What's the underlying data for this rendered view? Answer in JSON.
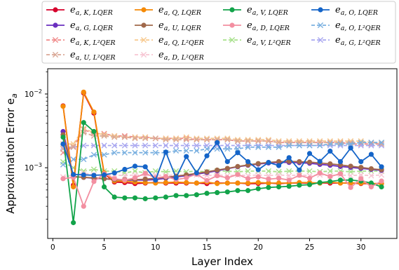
{
  "chart_data": {
    "type": "line",
    "xlabel": "Layer Index",
    "ylabel": "Approximation Error e_a",
    "x_scale": "linear",
    "y_scale": "log",
    "xlim": [
      -0.5,
      33.5
    ],
    "ylim": [
      0.00011,
      0.022
    ],
    "x_ticks": [
      0,
      5,
      10,
      15,
      20,
      25,
      30
    ],
    "y_ticks": [
      {
        "value": 0.01,
        "label": "10^-2"
      },
      {
        "value": 0.001,
        "label": "10^-3"
      }
    ],
    "grid": false,
    "legend_position": "top",
    "legend_columns": 4,
    "x": [
      1,
      2,
      3,
      4,
      5,
      6,
      7,
      8,
      9,
      10,
      11,
      12,
      13,
      14,
      15,
      16,
      17,
      18,
      19,
      20,
      21,
      22,
      23,
      24,
      25,
      26,
      27,
      28,
      29,
      30,
      31,
      32
    ],
    "series": [
      {
        "name": "e_{a,K,LQER}",
        "color": "#d6002c",
        "marker": "o",
        "style": "solid",
        "values": [
          0.0069,
          0.00058,
          0.0103,
          0.0055,
          0.00083,
          0.00064,
          0.00063,
          0.00061,
          0.00062,
          0.00063,
          0.00062,
          0.00062,
          0.00062,
          0.00062,
          0.00061,
          0.00062,
          0.00062,
          0.00062,
          0.00061,
          0.00061,
          0.00062,
          0.00061,
          0.00062,
          0.00062,
          0.00062,
          0.00062,
          0.00062,
          0.00062,
          0.00062,
          0.00061,
          0.00061,
          0.00061
        ]
      },
      {
        "name": "e_{a,G,LQER}",
        "color": "#6a2fbf",
        "marker": "o",
        "style": "solid",
        "values": [
          0.0031,
          0.00076,
          0.00074,
          0.00072,
          0.00071,
          0.00069,
          0.00068,
          0.00068,
          0.00068,
          0.00069,
          0.00072,
          0.00075,
          0.00078,
          0.00082,
          0.00086,
          0.00091,
          0.00097,
          0.00103,
          0.00108,
          0.00112,
          0.00116,
          0.00118,
          0.00118,
          0.00117,
          0.00115,
          0.00111,
          0.00108,
          0.00104,
          0.00101,
          0.00098,
          0.00095,
          0.00092
        ]
      },
      {
        "name": "e_{a,K,L²QER}",
        "color": "#f08a8a",
        "marker": "x",
        "style": "dashed",
        "values": [
          0.0016,
          0.00195,
          0.0033,
          0.0029,
          0.0029,
          0.0027,
          0.0027,
          0.0026,
          0.0026,
          0.0025,
          0.0025,
          0.0025,
          0.0025,
          0.0024,
          0.0024,
          0.0024,
          0.0024,
          0.0023,
          0.0023,
          0.0023,
          0.0023,
          0.0022,
          0.0022,
          0.0022,
          0.0022,
          0.0022,
          0.0022,
          0.0022,
          0.0021,
          0.0021,
          0.0021,
          0.0021
        ]
      },
      {
        "name": "e_{a,G,L²QER}",
        "color": "#a8a6f0",
        "marker": "x",
        "style": "dashed",
        "values": [
          0.0019,
          0.0019,
          0.002,
          0.002,
          0.002,
          0.002,
          0.002,
          0.002,
          0.002,
          0.002,
          0.002,
          0.002,
          0.002,
          0.002,
          0.002,
          0.002,
          0.002,
          0.002,
          0.002,
          0.002,
          0.002,
          0.002,
          0.002,
          0.002,
          0.002,
          0.002,
          0.002,
          0.002,
          0.002,
          0.002,
          0.002,
          0.002
        ]
      },
      {
        "name": "e_{a,Q,LQER}",
        "color": "#f58a07",
        "marker": "o",
        "style": "solid",
        "values": [
          0.0068,
          0.00055,
          0.0106,
          0.0057,
          0.00085,
          0.00066,
          0.00066,
          0.00064,
          0.00063,
          0.00062,
          0.00063,
          0.00064,
          0.00063,
          0.00062,
          0.00064,
          0.00061,
          0.00062,
          0.00062,
          0.00062,
          0.00063,
          0.00062,
          0.00062,
          0.00062,
          0.00063,
          0.00063,
          0.00062,
          0.00064,
          0.00062,
          0.00062,
          0.00062,
          0.00061,
          0.00061
        ]
      },
      {
        "name": "e_{a,U,LQER}",
        "color": "#a0684a",
        "marker": "o",
        "style": "solid",
        "values": [
          0.0028,
          0.00075,
          0.00074,
          0.00073,
          0.00071,
          0.00069,
          0.00069,
          0.00069,
          0.0007,
          0.00072,
          0.00074,
          0.00077,
          0.0008,
          0.00084,
          0.00088,
          0.00093,
          0.00098,
          0.00104,
          0.00109,
          0.00114,
          0.00118,
          0.00121,
          0.00122,
          0.00121,
          0.00119,
          0.00116,
          0.00113,
          0.00109,
          0.00105,
          0.00101,
          0.00097,
          0.00094
        ]
      },
      {
        "name": "e_{a,Q,L²QER}",
        "color": "#f7c98f",
        "marker": "x",
        "style": "dashed",
        "values": [
          0.0021,
          0.0021,
          0.0034,
          0.003,
          0.0028,
          0.0027,
          0.0026,
          0.0026,
          0.0026,
          0.0025,
          0.0025,
          0.0025,
          0.0026,
          0.0025,
          0.0025,
          0.0025,
          0.0025,
          0.0024,
          0.0024,
          0.0024,
          0.0024,
          0.0023,
          0.0023,
          0.0023,
          0.0023,
          0.0023,
          0.0023,
          0.0023,
          0.0023,
          0.0023,
          0.0022,
          0.0022
        ]
      },
      {
        "name": "e_{a,U,L²QER}",
        "color": "#d9a896",
        "marker": "x",
        "style": "dashed",
        "values": [
          0.0018,
          0.0019,
          0.003,
          0.0027,
          0.0027,
          0.0026,
          0.0026,
          0.0025,
          0.0025,
          0.0025,
          0.0024,
          0.0024,
          0.0024,
          0.0024,
          0.0024,
          0.0024,
          0.0024,
          0.0023,
          0.0023,
          0.0023,
          0.0023,
          0.0022,
          0.0022,
          0.0022,
          0.0022,
          0.0022,
          0.0022,
          0.0022,
          0.0022,
          0.0022,
          0.0022,
          0.0021
        ]
      },
      {
        "name": "e_{a,V,LQER}",
        "color": "#12a34a",
        "marker": "o",
        "style": "solid",
        "values": [
          0.0026,
          0.00018,
          0.0041,
          0.0031,
          0.00055,
          0.0004,
          0.00039,
          0.00039,
          0.00038,
          0.00039,
          0.0004,
          0.00042,
          0.00042,
          0.00043,
          0.00045,
          0.00046,
          0.00047,
          0.00049,
          0.00049,
          0.00052,
          0.00054,
          0.00055,
          0.00056,
          0.00058,
          0.00059,
          0.00063,
          0.00065,
          0.00068,
          0.00068,
          0.00066,
          0.00062,
          0.00055
        ]
      },
      {
        "name": "e_{a,D,LQER}",
        "color": "#f38fa1",
        "marker": "o",
        "style": "solid",
        "values": [
          0.00071,
          0.00074,
          0.0003,
          0.00065,
          0.00083,
          0.00071,
          0.00068,
          0.00073,
          0.00084,
          0.00073,
          0.00076,
          0.00069,
          0.00073,
          0.00082,
          0.00067,
          0.00078,
          0.00073,
          0.00081,
          0.00071,
          0.00075,
          0.0007,
          0.00072,
          0.00068,
          0.00079,
          0.00072,
          0.00085,
          0.00076,
          0.00083,
          0.00054,
          0.00071,
          0.00055,
          0.00066
        ]
      },
      {
        "name": "e_{a,V,L²QER}",
        "color": "#a6e08a",
        "marker": "x",
        "style": "dashed",
        "values": [
          0.0012,
          0.001,
          0.0009,
          0.00095,
          0.0009,
          0.0009,
          0.00085,
          0.0009,
          0.00085,
          0.0009,
          0.00088,
          0.0009,
          0.00088,
          0.0009,
          0.00088,
          0.0009,
          0.0009,
          0.00088,
          0.0009,
          0.0009,
          0.0009,
          0.00088,
          0.0009,
          0.0009,
          0.0009,
          0.00088,
          0.0009,
          0.0009,
          0.00088,
          0.0009,
          0.0009,
          0.0009
        ]
      },
      {
        "name": "e_{a,D,L²QER}",
        "color": "#f7c5d3",
        "marker": "x",
        "style": "dashed",
        "values": [
          0.00075,
          0.0008,
          0.00085,
          0.0008,
          0.00078,
          0.0008,
          0.00078,
          0.0008,
          0.00078,
          0.0008,
          0.00078,
          0.0008,
          0.00078,
          0.0008,
          0.00078,
          0.0008,
          0.00078,
          0.0008,
          0.00078,
          0.0008,
          0.00078,
          0.0008,
          0.00078,
          0.0008,
          0.00078,
          0.0008,
          0.00078,
          0.0008,
          0.00078,
          0.0008,
          0.00078,
          0.0008
        ]
      },
      {
        "name": "e_{a,O,LQER}",
        "color": "#1464c8",
        "marker": "o",
        "style": "solid",
        "values": [
          0.0021,
          0.00081,
          0.0008,
          0.00079,
          0.0008,
          0.00085,
          0.00095,
          0.00105,
          0.00103,
          0.00068,
          0.00163,
          0.00073,
          0.00142,
          0.00085,
          0.00145,
          0.0022,
          0.00121,
          0.0016,
          0.00121,
          0.00094,
          0.00118,
          0.00107,
          0.00137,
          0.00093,
          0.00156,
          0.00122,
          0.00168,
          0.00121,
          0.00185,
          0.00121,
          0.00152,
          0.00103
        ]
      },
      {
        "name": "e_{a,O,L²QER}",
        "color": "#7ab0e0",
        "marker": "x",
        "style": "dashed",
        "values": [
          0.0011,
          0.0013,
          0.0013,
          0.0015,
          0.0015,
          0.0016,
          0.0016,
          0.0016,
          0.0016,
          0.0016,
          0.0016,
          0.0017,
          0.0017,
          0.0017,
          0.0018,
          0.0018,
          0.0018,
          0.0018,
          0.0019,
          0.0019,
          0.0019,
          0.0019,
          0.002,
          0.002,
          0.002,
          0.002,
          0.0021,
          0.0021,
          0.0021,
          0.0022,
          0.0022,
          0.0022
        ]
      }
    ]
  },
  "legend": {
    "items": [
      {
        "base": "e",
        "sub": "a, K, LQER",
        "sub_letter": "K",
        "method": "LQER",
        "color": "#d6002c",
        "marker": "o",
        "style": "solid"
      },
      {
        "base": "e",
        "sub": "a, Q, LQER",
        "sub_letter": "Q",
        "method": "LQER",
        "color": "#f58a07",
        "marker": "o",
        "style": "solid"
      },
      {
        "base": "e",
        "sub": "a, V, LQER",
        "sub_letter": "V",
        "method": "LQER",
        "color": "#12a34a",
        "marker": "o",
        "style": "solid"
      },
      {
        "base": "e",
        "sub": "a, O, LQER",
        "sub_letter": "O",
        "method": "LQER",
        "color": "#1464c8",
        "marker": "o",
        "style": "solid"
      },
      {
        "base": "e",
        "sub": "a, G, LQER",
        "sub_letter": "G",
        "method": "LQER",
        "color": "#6a2fbf",
        "marker": "o",
        "style": "solid"
      },
      {
        "base": "e",
        "sub": "a, U, LQER",
        "sub_letter": "U",
        "method": "LQER",
        "color": "#a0684a",
        "marker": "o",
        "style": "solid"
      },
      {
        "base": "e",
        "sub": "a, D, LQER",
        "sub_letter": "D",
        "method": "LQER",
        "color": "#f38fa1",
        "marker": "o",
        "style": "solid"
      },
      {
        "base": "e",
        "sub": "a, O, L²QER",
        "sub_letter": "O",
        "method": "L²QER",
        "color": "#7ab0e0",
        "marker": "x",
        "style": "dashed"
      },
      {
        "base": "e",
        "sub": "a, K, L²QER",
        "sub_letter": "K",
        "method": "L²QER",
        "color": "#f08a8a",
        "marker": "x",
        "style": "dashed"
      },
      {
        "base": "e",
        "sub": "a, Q, L²QER",
        "sub_letter": "Q",
        "method": "L²QER",
        "color": "#f7c98f",
        "marker": "x",
        "style": "dashed"
      },
      {
        "base": "e",
        "sub": "a, V, L²QER",
        "sub_letter": "V",
        "method": "L²QER",
        "color": "#a6e08a",
        "marker": "x",
        "style": "dashed"
      },
      {
        "base": "e",
        "sub": "a, G, L²QER",
        "sub_letter": "G",
        "method": "L²QER",
        "color": "#a8a6f0",
        "marker": "x",
        "style": "dashed"
      },
      {
        "base": "e",
        "sub": "a, U, L²QER",
        "sub_letter": "U",
        "method": "L²QER",
        "color": "#d9a896",
        "marker": "x",
        "style": "dashed"
      },
      {
        "base": "e",
        "sub": "a, D, L²QER",
        "sub_letter": "D",
        "method": "L²QER",
        "color": "#f7c5d3",
        "marker": "x",
        "style": "dashed"
      }
    ]
  }
}
